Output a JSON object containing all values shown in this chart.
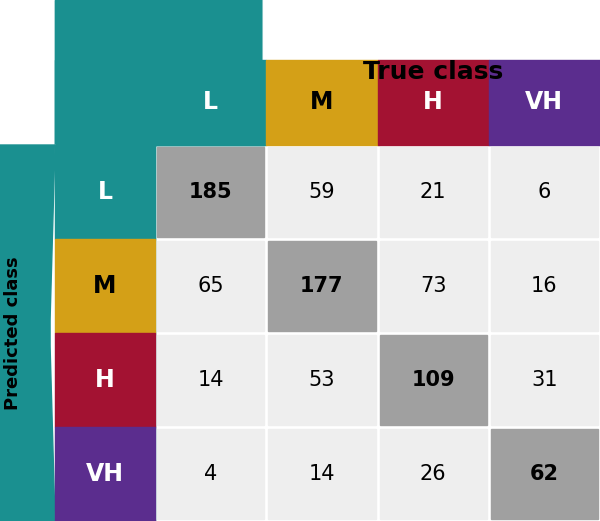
{
  "matrix": [
    [
      185,
      59,
      21,
      6
    ],
    [
      65,
      177,
      73,
      16
    ],
    [
      14,
      53,
      109,
      31
    ],
    [
      4,
      14,
      26,
      62
    ]
  ],
  "classes": [
    "L",
    "M",
    "H",
    "VH"
  ],
  "color_L": "#1a9090",
  "color_M": "#D4A017",
  "color_H": "#A31232",
  "color_VH": "#5B2D8E",
  "diagonal_color": "#A0A0A0",
  "off_diagonal_color": "#EEEEEE",
  "title": "True class",
  "ylabel": "Predicted class",
  "background": "#FFFFFF"
}
